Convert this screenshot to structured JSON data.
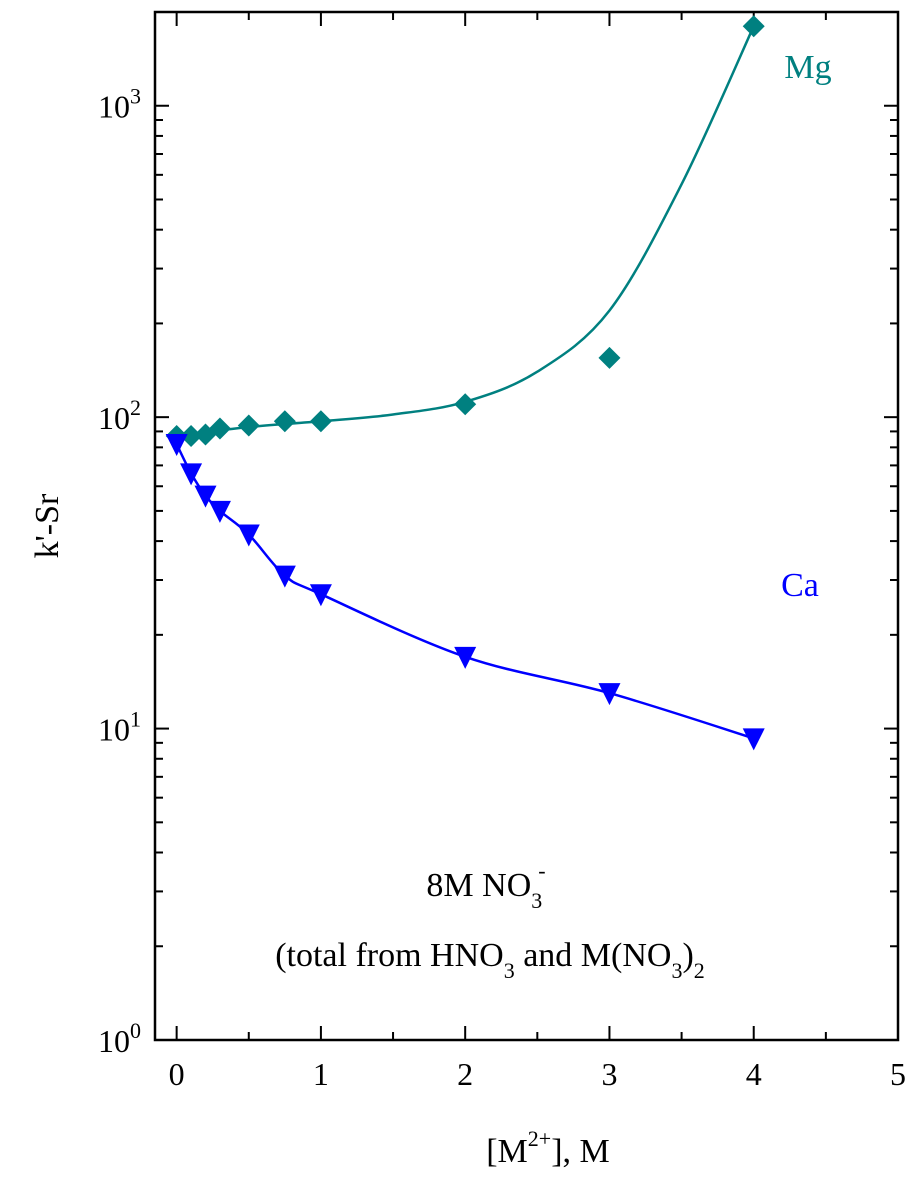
{
  "chart_data": {
    "type": "scatter",
    "title": "",
    "xlabel": {
      "base": "[M",
      "sup": "2+",
      "tail": "], M"
    },
    "ylabel": "k'-Sr",
    "xlim": [
      -0.15,
      5
    ],
    "ylim": [
      1,
      2000
    ],
    "yscale": "log",
    "grid": false,
    "x_ticks": [
      "0",
      "1",
      "2",
      "3",
      "4",
      "5"
    ],
    "y_ticks": [
      {
        "base": "10",
        "exp": "0"
      },
      {
        "base": "10",
        "exp": "1"
      },
      {
        "base": "10",
        "exp": "2"
      },
      {
        "base": "10",
        "exp": "3"
      }
    ],
    "series": [
      {
        "name": "Mg",
        "color": "#008080",
        "marker": "diamond",
        "points": [
          [
            0,
            87
          ],
          [
            0.1,
            87
          ],
          [
            0.2,
            88
          ],
          [
            0.3,
            92
          ],
          [
            0.5,
            94
          ],
          [
            0.75,
            97
          ],
          [
            1,
            97
          ],
          [
            2,
            110
          ],
          [
            3,
            155
          ],
          [
            4,
            1800
          ]
        ]
      },
      {
        "name": "Ca",
        "color": "#0000ff",
        "marker": "triangle-down",
        "points": [
          [
            0,
            82
          ],
          [
            0.1,
            66
          ],
          [
            0.2,
            56
          ],
          [
            0.3,
            50
          ],
          [
            0.5,
            42
          ],
          [
            0.75,
            31
          ],
          [
            1,
            27
          ],
          [
            2,
            17
          ],
          [
            3,
            13
          ],
          [
            4,
            9.3
          ]
        ]
      }
    ],
    "annotations": {
      "line1": {
        "text": "8M NO",
        "sub": "3",
        "sup": "-"
      },
      "line2": {
        "parts": [
          {
            "t": "(total from HNO",
            "k": "n"
          },
          {
            "t": "3",
            "k": "sub"
          },
          {
            "t": " and M(NO",
            "k": "n"
          },
          {
            "t": "3",
            "k": "sub"
          },
          {
            "t": ")",
            "k": "n"
          },
          {
            "t": "2",
            "k": "sub"
          }
        ]
      }
    }
  }
}
